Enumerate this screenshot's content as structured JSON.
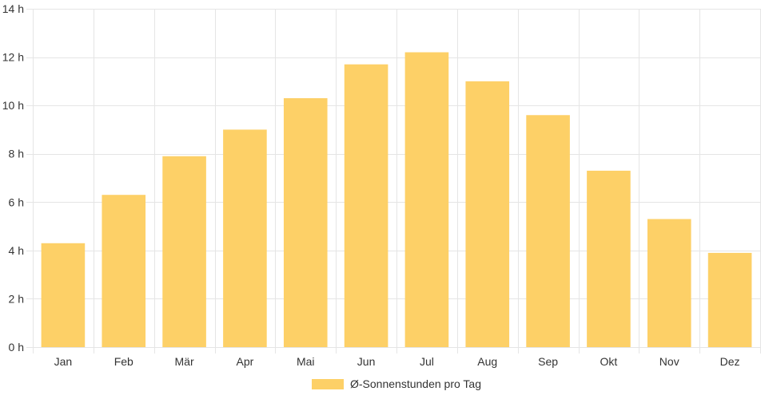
{
  "chart_data": {
    "type": "bar",
    "categories": [
      "Jan",
      "Feb",
      "Mär",
      "Apr",
      "Mai",
      "Jun",
      "Jul",
      "Aug",
      "Sep",
      "Okt",
      "Nov",
      "Dez"
    ],
    "series": [
      {
        "name": "Ø-Sonnenstunden pro Tag",
        "values": [
          4.3,
          6.3,
          7.9,
          9.0,
          10.3,
          11.7,
          12.2,
          11.0,
          9.6,
          7.3,
          5.3,
          3.9
        ],
        "color": "#fdd067"
      }
    ],
    "y_ticks": [
      "0 h",
      "2 h",
      "4 h",
      "6 h",
      "8 h",
      "10 h",
      "12 h",
      "14 h"
    ],
    "ylim": [
      0,
      14
    ],
    "y_tick_step": 2,
    "grid": true,
    "grid_color": "#e5e5e5",
    "legend_position": "bottom"
  }
}
